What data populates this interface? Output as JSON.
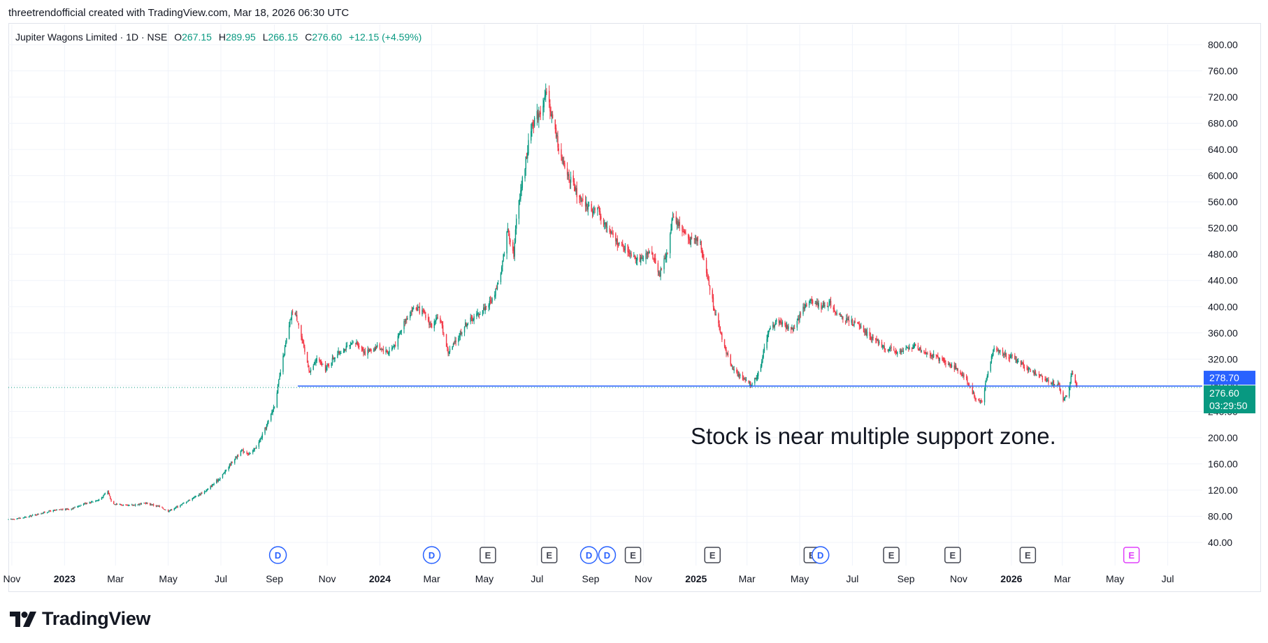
{
  "header": {
    "credit": "threetrendofficial created with TradingView.com, Mar 18, 2026 06:30 UTC"
  },
  "legend": {
    "symbol": "Jupiter Wagons Limited · 1D · NSE",
    "open_label": "O",
    "open": "267.15",
    "high_label": "H",
    "high": "289.95",
    "low_label": "L",
    "low": "266.15",
    "close_label": "C",
    "close": "276.60",
    "change": "+12.15 (+4.59%)"
  },
  "annotation": "Stock is near multiple support zone.",
  "price_badges": {
    "line_price": "278.70",
    "last_price": "276.60",
    "countdown": "03:29:50"
  },
  "events": [
    "D",
    "D",
    "E",
    "E",
    "D",
    "D",
    "E",
    "E",
    "E",
    "D",
    "E",
    "E",
    "E",
    "E"
  ],
  "brand": {
    "name": "TradingView"
  },
  "colors": {
    "up": "#089981",
    "down": "#f23645",
    "line": "#2962ff",
    "badge_blue": "#2962ff",
    "badge_green": "#089981",
    "future_earnings": "#e040fb"
  },
  "chart_data": {
    "type": "candlestick",
    "title": "Jupiter Wagons Limited · 1D · NSE",
    "y_ticks": [
      "40.00",
      "80.00",
      "120.00",
      "160.00",
      "200.00",
      "240.00",
      "280.00",
      "320.00",
      "360.00",
      "400.00",
      "440.00",
      "480.00",
      "520.00",
      "560.00",
      "600.00",
      "640.00",
      "680.00",
      "720.00",
      "760.00",
      "800.00"
    ],
    "x_ticks": [
      {
        "date": "2022-11-01",
        "label": "Nov"
      },
      {
        "date": "2023-01-01",
        "label": "2023"
      },
      {
        "date": "2023-03-01",
        "label": "Mar"
      },
      {
        "date": "2023-05-01",
        "label": "May"
      },
      {
        "date": "2023-07-01",
        "label": "Jul"
      },
      {
        "date": "2023-09-01",
        "label": "Sep"
      },
      {
        "date": "2023-11-01",
        "label": "Nov"
      },
      {
        "date": "2024-01-01",
        "label": "2024"
      },
      {
        "date": "2024-03-01",
        "label": "Mar"
      },
      {
        "date": "2024-05-01",
        "label": "May"
      },
      {
        "date": "2024-07-01",
        "label": "Jul"
      },
      {
        "date": "2024-09-01",
        "label": "Sep"
      },
      {
        "date": "2024-11-01",
        "label": "Nov"
      },
      {
        "date": "2025-01-01",
        "label": "2025"
      },
      {
        "date": "2025-03-01",
        "label": "Mar"
      },
      {
        "date": "2025-05-01",
        "label": "May"
      },
      {
        "date": "2025-07-01",
        "label": "Jul"
      },
      {
        "date": "2025-09-01",
        "label": "Sep"
      },
      {
        "date": "2025-11-01",
        "label": "Nov"
      },
      {
        "date": "2026-01-01",
        "label": "2026"
      },
      {
        "date": "2026-03-01",
        "label": "Mar"
      },
      {
        "date": "2026-05-01",
        "label": "May"
      },
      {
        "date": "2026-07-01",
        "label": "Jul"
      }
    ],
    "ylim": [
      20,
      820
    ],
    "xlim": [
      "2022-10-28",
      "2026-08-10"
    ],
    "support_line": 278.7,
    "last_close": 276.6,
    "grid": true,
    "price_path": [
      [
        "2022-10-28",
        75
      ],
      [
        "2022-11-15",
        78
      ],
      [
        "2022-12-15",
        88
      ],
      [
        "2023-01-10",
        92
      ],
      [
        "2023-01-25",
        100
      ],
      [
        "2023-02-10",
        105
      ],
      [
        "2023-02-20",
        118
      ],
      [
        "2023-02-25",
        100
      ],
      [
        "2023-03-15",
        96
      ],
      [
        "2023-04-05",
        100
      ],
      [
        "2023-04-20",
        95
      ],
      [
        "2023-05-01",
        88
      ],
      [
        "2023-05-15",
        97
      ],
      [
        "2023-06-01",
        110
      ],
      [
        "2023-06-15",
        120
      ],
      [
        "2023-07-01",
        140
      ],
      [
        "2023-07-15",
        165
      ],
      [
        "2023-07-25",
        180
      ],
      [
        "2023-08-05",
        175
      ],
      [
        "2023-08-15",
        195
      ],
      [
        "2023-08-25",
        225
      ],
      [
        "2023-09-01",
        250
      ],
      [
        "2023-09-08",
        300
      ],
      [
        "2023-09-15",
        350
      ],
      [
        "2023-09-22",
        395
      ],
      [
        "2023-09-28",
        380
      ],
      [
        "2023-10-05",
        335
      ],
      [
        "2023-10-12",
        300
      ],
      [
        "2023-10-20",
        320
      ],
      [
        "2023-10-30",
        305
      ],
      [
        "2023-11-10",
        325
      ],
      [
        "2023-11-20",
        335
      ],
      [
        "2023-12-05",
        345
      ],
      [
        "2023-12-15",
        330
      ],
      [
        "2023-12-30",
        340
      ],
      [
        "2024-01-10",
        330
      ],
      [
        "2024-01-20",
        345
      ],
      [
        "2024-01-30",
        380
      ],
      [
        "2024-02-10",
        400
      ],
      [
        "2024-02-20",
        390
      ],
      [
        "2024-03-01",
        370
      ],
      [
        "2024-03-10",
        385
      ],
      [
        "2024-03-20",
        330
      ],
      [
        "2024-03-28",
        345
      ],
      [
        "2024-04-10",
        375
      ],
      [
        "2024-04-25",
        390
      ],
      [
        "2024-05-10",
        410
      ],
      [
        "2024-05-20",
        450
      ],
      [
        "2024-05-28",
        520
      ],
      [
        "2024-06-04",
        480
      ],
      [
        "2024-06-08",
        550
      ],
      [
        "2024-06-15",
        600
      ],
      [
        "2024-06-25",
        680
      ],
      [
        "2024-07-05",
        700
      ],
      [
        "2024-07-12",
        725
      ],
      [
        "2024-07-20",
        680
      ],
      [
        "2024-07-30",
        620
      ],
      [
        "2024-08-10",
        590
      ],
      [
        "2024-08-20",
        560
      ],
      [
        "2024-09-01",
        550
      ],
      [
        "2024-09-10",
        545
      ],
      [
        "2024-09-20",
        520
      ],
      [
        "2024-10-01",
        500
      ],
      [
        "2024-10-10",
        490
      ],
      [
        "2024-10-20",
        480
      ],
      [
        "2024-10-30",
        470
      ],
      [
        "2024-11-10",
        485
      ],
      [
        "2024-11-20",
        450
      ],
      [
        "2024-11-30",
        490
      ],
      [
        "2024-12-05",
        540
      ],
      [
        "2024-12-15",
        520
      ],
      [
        "2024-12-25",
        500
      ],
      [
        "2025-01-05",
        505
      ],
      [
        "2025-01-15",
        440
      ],
      [
        "2025-01-25",
        380
      ],
      [
        "2025-02-05",
        330
      ],
      [
        "2025-02-15",
        300
      ],
      [
        "2025-02-25",
        290
      ],
      [
        "2025-03-05",
        280
      ],
      [
        "2025-03-15",
        300
      ],
      [
        "2025-03-25",
        360
      ],
      [
        "2025-04-05",
        380
      ],
      [
        "2025-04-15",
        370
      ],
      [
        "2025-04-25",
        365
      ],
      [
        "2025-05-05",
        400
      ],
      [
        "2025-05-15",
        410
      ],
      [
        "2025-05-25",
        400
      ],
      [
        "2025-06-05",
        405
      ],
      [
        "2025-06-15",
        385
      ],
      [
        "2025-06-25",
        380
      ],
      [
        "2025-07-10",
        370
      ],
      [
        "2025-07-25",
        350
      ],
      [
        "2025-08-10",
        335
      ],
      [
        "2025-08-25",
        330
      ],
      [
        "2025-09-10",
        340
      ],
      [
        "2025-09-25",
        330
      ],
      [
        "2025-10-10",
        320
      ],
      [
        "2025-10-25",
        310
      ],
      [
        "2025-11-10",
        290
      ],
      [
        "2025-11-20",
        260
      ],
      [
        "2025-11-28",
        255
      ],
      [
        "2025-12-05",
        300
      ],
      [
        "2025-12-12",
        340
      ],
      [
        "2025-12-20",
        330
      ],
      [
        "2026-01-05",
        320
      ],
      [
        "2026-01-20",
        305
      ],
      [
        "2026-02-01",
        295
      ],
      [
        "2026-02-15",
        285
      ],
      [
        "2026-02-25",
        280
      ],
      [
        "2026-03-02",
        255
      ],
      [
        "2026-03-08",
        270
      ],
      [
        "2026-03-12",
        300
      ],
      [
        "2026-03-18",
        276.6
      ]
    ]
  }
}
